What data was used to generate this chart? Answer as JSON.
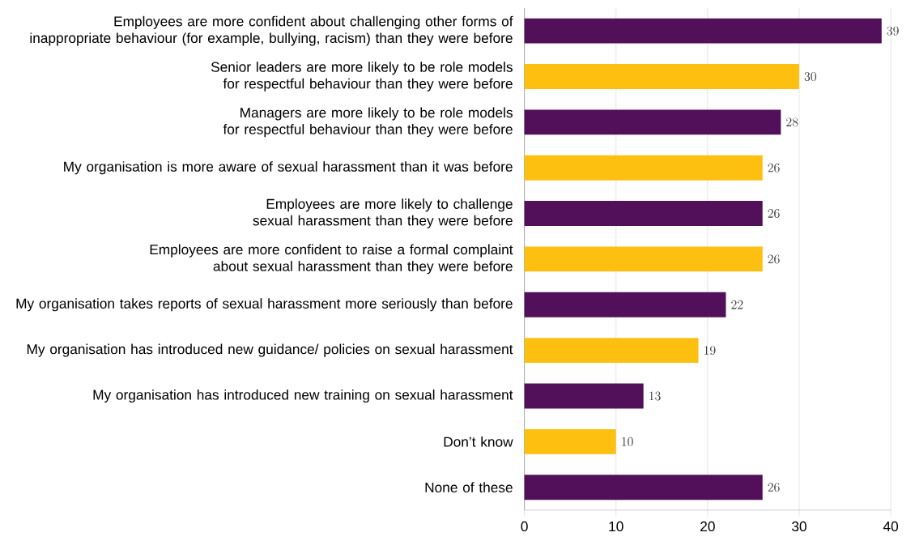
{
  "chart_data": {
    "type": "bar",
    "orientation": "horizontal",
    "categories": [
      "Employees are more confident about challenging other forms of inappropriate behaviour (for example, bullying, racism) than they were before",
      "Senior leaders are more likely to be role models for respectful behaviour than they were before",
      "Managers are more likely to be role models for respectful behaviour than they were before",
      "My organisation is more aware of sexual harassment than it was before",
      "Employees are more likely to challenge sexual harassment than they were before",
      "Employees are more confident to raise a formal complaint about sexual harassment than they were before",
      "My organisation takes reports of sexual harassment more seriously than before",
      "My organisation has introduced new guidance/ policies on sexual harassment",
      "My organisation has introduced new training on sexual harassment",
      "Don’t know",
      "None of these"
    ],
    "values": [
      39,
      30,
      28,
      26,
      26,
      26,
      22,
      19,
      13,
      10,
      26
    ],
    "colors": [
      "#520f5a",
      "#fdc010",
      "#520f5a",
      "#fdc010",
      "#520f5a",
      "#fdc010",
      "#520f5a",
      "#fdc010",
      "#520f5a",
      "#fdc010",
      "#520f5a"
    ],
    "xlim": [
      0,
      40
    ],
    "xticks": [
      0,
      10,
      20,
      30,
      40
    ],
    "grid": "x",
    "data_labels": true
  }
}
